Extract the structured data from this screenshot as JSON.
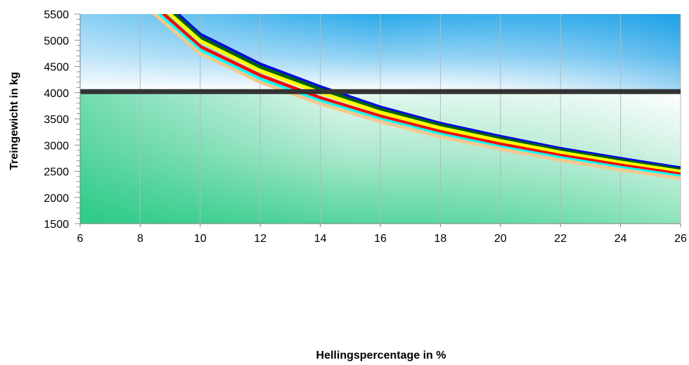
{
  "chart_data": {
    "type": "line",
    "title": "",
    "xlabel": "Hellingspercentage in %",
    "ylabel": "Treingewicht in kg",
    "xlim": [
      6,
      26
    ],
    "ylim": [
      1500,
      5500
    ],
    "x_ticks": [
      "6",
      "8",
      "10",
      "12",
      "14",
      "16",
      "18",
      "20",
      "22",
      "24",
      "26"
    ],
    "y_ticks": [
      "1500",
      "2000",
      "2500",
      "3000",
      "3500",
      "4000",
      "4500",
      "5000",
      "5500"
    ],
    "grid": "vertical",
    "legend": "none",
    "background": {
      "top": "#1aa3e8",
      "middle": "#ffffff",
      "bottom": "#00c878",
      "split_at": 4000
    },
    "reference_line": {
      "y": 4020,
      "color": "#333333"
    },
    "series": [
      {
        "color": "#0000ee",
        "x": [
          8,
          10,
          12,
          14,
          16,
          18,
          20,
          22,
          24,
          26
        ],
        "y": [
          6140,
          5110,
          4540,
          4110,
          3720,
          3410,
          3160,
          2930,
          2740,
          2560
        ]
      },
      {
        "color": "#006400",
        "x": [
          8,
          10,
          12,
          14,
          16,
          18,
          20,
          22,
          24,
          26
        ],
        "y": [
          6080,
          5060,
          4490,
          4065,
          3680,
          3375,
          3125,
          2900,
          2710,
          2530
        ]
      },
      {
        "color": "#ffff00",
        "x": [
          8,
          10,
          12,
          14,
          16,
          18,
          20,
          22,
          24,
          26
        ],
        "y": [
          6000,
          4990,
          4420,
          4000,
          3625,
          3325,
          3080,
          2860,
          2670,
          2495
        ]
      },
      {
        "color": "#ff0000",
        "x": [
          8,
          10,
          12,
          14,
          16,
          18,
          20,
          22,
          24,
          26
        ],
        "y": [
          5890,
          4880,
          4330,
          3900,
          3550,
          3255,
          3015,
          2800,
          2615,
          2445
        ]
      },
      {
        "color": "#00ffff",
        "x": [
          8,
          10,
          12,
          14,
          16,
          18,
          20,
          22,
          24,
          26
        ],
        "y": [
          5810,
          4810,
          4260,
          3840,
          3495,
          3205,
          2965,
          2755,
          2570,
          2405
        ]
      },
      {
        "color": "#f5c78e",
        "x": [
          8,
          10,
          12,
          14,
          16,
          18,
          20,
          22,
          24,
          26
        ],
        "y": [
          5740,
          4750,
          4200,
          3790,
          3450,
          3160,
          2925,
          2715,
          2530,
          2365
        ]
      }
    ]
  }
}
